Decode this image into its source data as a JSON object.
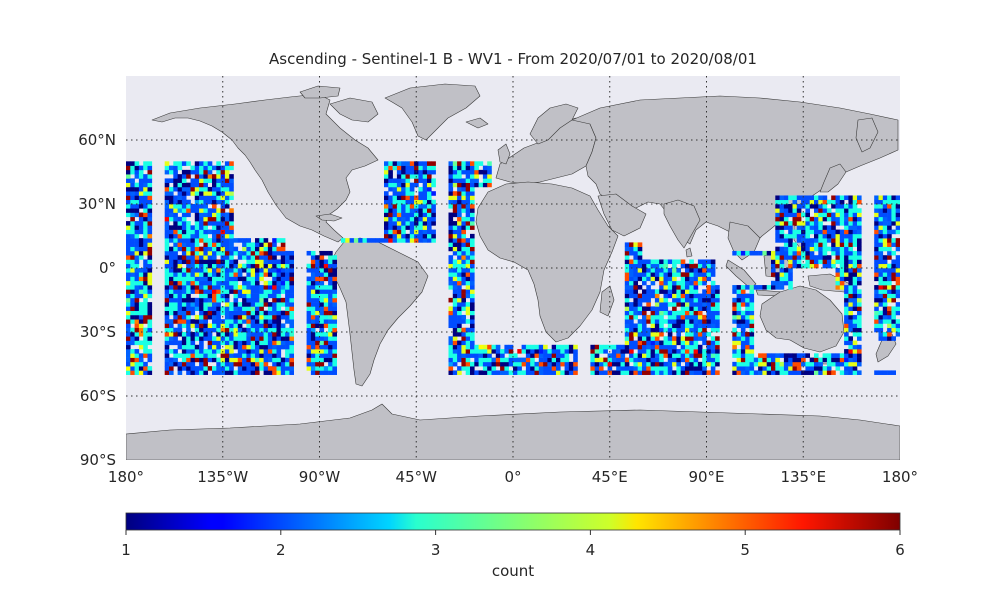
{
  "title": "Ascending - Sentinel-1 B - WV1 - From 2020/07/01 to 2020/08/01",
  "lat_labels": [
    {
      "value": 60,
      "label": "60°N"
    },
    {
      "value": 30,
      "label": "30°N"
    },
    {
      "value": 0,
      "label": "0°"
    },
    {
      "value": -30,
      "label": "30°S"
    },
    {
      "value": -60,
      "label": "60°S"
    },
    {
      "value": -90,
      "label": "90°S"
    }
  ],
  "lon_labels": [
    {
      "value": -180,
      "label": "180°"
    },
    {
      "value": -135,
      "label": "135°W"
    },
    {
      "value": -90,
      "label": "90°W"
    },
    {
      "value": -45,
      "label": "45°W"
    },
    {
      "value": 0,
      "label": "0°"
    },
    {
      "value": 45,
      "label": "45°E"
    },
    {
      "value": 90,
      "label": "90°E"
    },
    {
      "value": 135,
      "label": "135°E"
    },
    {
      "value": 180,
      "label": "180°"
    }
  ],
  "map": {
    "projection": "plate carree",
    "lon_range": [
      -180,
      180
    ],
    "lat_range": [
      -90,
      90
    ],
    "ocean_color": "#eaeaf2",
    "land_color": "#c0c0c6",
    "coast_color": "#3a3a3a",
    "gridline_style": "dotted",
    "data_lat_range": [
      -50,
      50
    ]
  },
  "colorbar": {
    "label": "count",
    "min": 1,
    "max": 6,
    "colormap": "jet",
    "ticks": [
      {
        "value": 1,
        "label": "1"
      },
      {
        "value": 2,
        "label": "2"
      },
      {
        "value": 3,
        "label": "3"
      },
      {
        "value": 4,
        "label": "4"
      },
      {
        "value": 5,
        "label": "5"
      },
      {
        "value": 6,
        "label": "6"
      }
    ]
  }
}
